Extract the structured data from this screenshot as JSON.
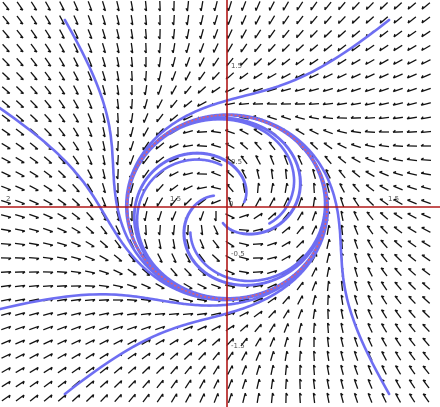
{
  "figure": {
    "type": "phase-portrait",
    "description_none": "",
    "x_range": [
      -2,
      2
    ],
    "y_range": [
      -2,
      2
    ],
    "limit_cycle_radius": 1,
    "colors": {
      "axes": "#b01818",
      "trajectory": "#6e6ef2",
      "limit_cycle": "#e06070",
      "direction_field": "#111111",
      "background": "#ffffff"
    },
    "tick_labels": {
      "x_neg_major": "2",
      "x_neg_minor": "1.5",
      "x_pos_major": "1.5",
      "y_pos_top": "1.5",
      "y_pos_mid": "0.5",
      "y_neg_mid": "-0.5",
      "y_neg_low": "-1.5",
      "origin": "0"
    }
  }
}
